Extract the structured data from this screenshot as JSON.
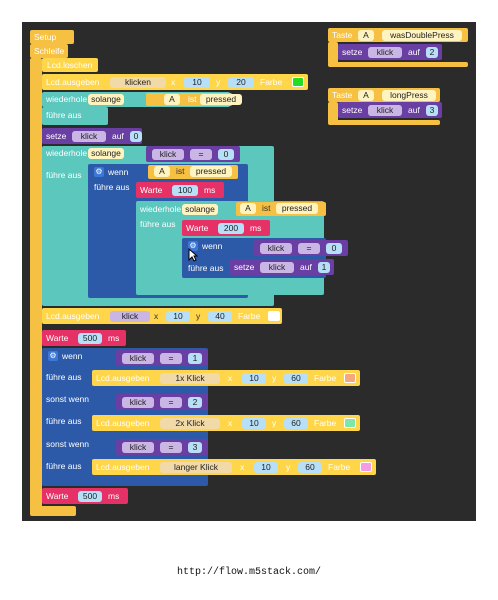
{
  "url": "http://flow.m5stack.com/",
  "setup": {
    "label": "Setup"
  },
  "loop": {
    "label": "Schleife"
  },
  "lcd_clear": {
    "label": "Lcd.loschen"
  },
  "lcd_print1": {
    "label": "Lcd.ausgeben",
    "text": "klicken",
    "x_label": "x",
    "x": "10",
    "y_label": "y",
    "y": "20",
    "color_label": "Farbe",
    "color": "#22dd22"
  },
  "while1": {
    "label": "wiederhole",
    "mode": "solange",
    "button": "A",
    "is_label": "ist",
    "state": "pressed",
    "do_label": "führe aus"
  },
  "set_klick0": {
    "label": "setze",
    "var": "klick",
    "to": "auf",
    "value": "0"
  },
  "while2": {
    "label": "wiederhole",
    "mode": "solange",
    "var": "klick",
    "op": "=",
    "value": "0",
    "do_label": "führe aus"
  },
  "if1": {
    "label": "wenn",
    "button": "A",
    "is_label": "ist",
    "state": "pressed",
    "do_label": "führe aus"
  },
  "wait100": {
    "label": "Warte",
    "value": "100",
    "unit": "ms"
  },
  "while3": {
    "label": "wiederhole",
    "mode": "solange",
    "button": "A",
    "is_label": "ist",
    "state": "pressed",
    "do_label": "führe aus"
  },
  "wait200": {
    "label": "Warte",
    "value": "200",
    "unit": "ms"
  },
  "if2": {
    "label": "wenn",
    "var": "klick",
    "op": "=",
    "value": "0",
    "do_label": "führe aus",
    "set_label": "setze",
    "set_var": "klick",
    "set_to": "auf",
    "set_value": "1"
  },
  "lcd_print2": {
    "label": "Lcd.ausgeben",
    "var": "klick",
    "x_label": "x",
    "x": "10",
    "y_label": "y",
    "y": "40",
    "color_label": "Farbe",
    "color": "#ffffff"
  },
  "wait500a": {
    "label": "Warte",
    "value": "500",
    "unit": "ms"
  },
  "if3": {
    "label": "wenn",
    "do_label": "führe aus",
    "else_if_label": "sonst wenn",
    "cond1": {
      "var": "klick",
      "op": "=",
      "value": "1"
    },
    "print1": {
      "label": "Lcd.ausgeben",
      "text": "1x Klick",
      "x_label": "x",
      "x": "10",
      "y_label": "y",
      "y": "60",
      "color_label": "Farbe",
      "color": "#f6a77e"
    },
    "cond2": {
      "var": "klick",
      "op": "=",
      "value": "2"
    },
    "print2": {
      "label": "Lcd.ausgeben",
      "text": "2x Klick",
      "x_label": "x",
      "x": "10",
      "y_label": "y",
      "y": "60",
      "color_label": "Farbe",
      "color": "#7ee6a8"
    },
    "cond3": {
      "var": "klick",
      "op": "=",
      "value": "3"
    },
    "print3": {
      "label": "Lcd.ausgeben",
      "text": "langer Klick",
      "x_label": "x",
      "x": "10",
      "y_label": "y",
      "y": "60",
      "color_label": "Farbe",
      "color": "#f59ce6"
    }
  },
  "wait500b": {
    "label": "Warte",
    "value": "500",
    "unit": "ms"
  },
  "event1": {
    "label": "Taste",
    "button": "A",
    "event": "wasDoublePress",
    "set_label": "setze",
    "var": "klick",
    "to": "auf",
    "value": "2"
  },
  "event2": {
    "label": "Taste",
    "button": "A",
    "event": "longPress",
    "set_label": "setze",
    "var": "klick",
    "to": "auf",
    "value": "3"
  }
}
